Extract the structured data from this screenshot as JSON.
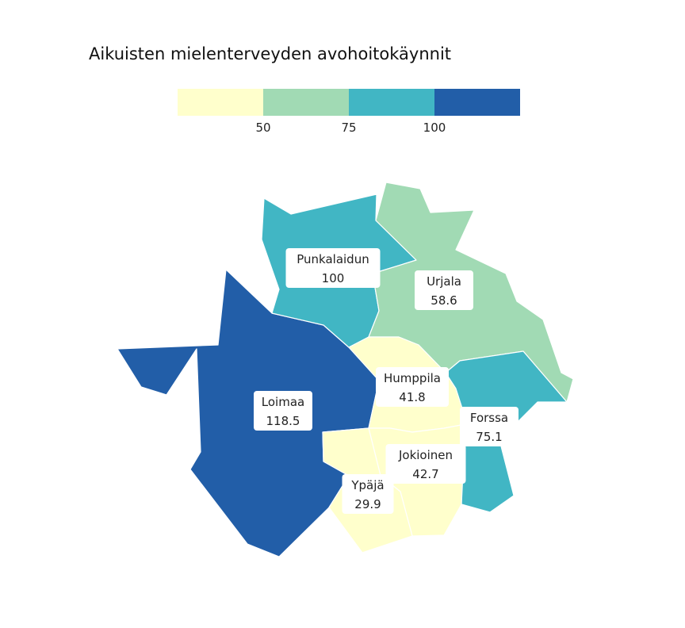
{
  "title": "Aikuisten mielenterveyden avohoitokäynnit",
  "legend": {
    "colors": [
      "#ffffcc",
      "#a1dab4",
      "#41b6c4",
      "#225ea8"
    ],
    "ticks": [
      "50",
      "75",
      "100"
    ]
  },
  "municipalities": [
    {
      "id": "loimaa",
      "name": "Loimaa",
      "value": "118.5",
      "color": "#225ea8"
    },
    {
      "id": "punkalaidun",
      "name": "Punkalaidun",
      "value": "100",
      "color": "#41b6c4"
    },
    {
      "id": "urjala",
      "name": "Urjala",
      "value": "58.6",
      "color": "#a1dab4"
    },
    {
      "id": "humppila",
      "name": "Humppila",
      "value": "41.8",
      "color": "#ffffcc"
    },
    {
      "id": "forssa",
      "name": "Forssa",
      "value": "75.1",
      "color": "#41b6c4"
    },
    {
      "id": "jokioinen",
      "name": "Jokioinen",
      "value": "42.7",
      "color": "#ffffcc"
    },
    {
      "id": "ypaja",
      "name": "Ypäjä",
      "value": "29.9",
      "color": "#ffffcc"
    }
  ]
}
